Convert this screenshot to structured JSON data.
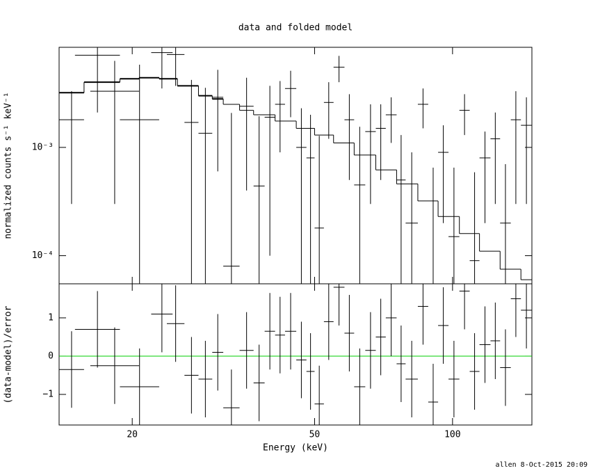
{
  "chart_data": [
    {
      "type": "errorbar",
      "title": "data and folded model",
      "ylabel": "normalized counts s⁻¹ keV⁻¹",
      "xscale": "log",
      "yscale": "log",
      "xlim": [
        13.85,
        149
      ],
      "ylim": [
        5.5e-05,
        0.0084
      ],
      "yticks": [
        {
          "value": 0.001,
          "label": "10⁻³"
        },
        {
          "value": 0.0001,
          "label": "10⁻⁴"
        }
      ],
      "data": {
        "color": "#000000",
        "x_low": [
          13.85,
          15.0,
          16.2,
          18.8,
          22.0,
          23.8,
          26.0,
          27.9,
          29.9,
          31.6,
          34.3,
          36.8,
          38.9,
          41.0,
          43.1,
          45.6,
          48.0,
          50.0,
          52.4,
          55.0,
          58.1,
          61.0,
          64.5,
          68.0,
          71.5,
          75.5,
          79.0,
          84.0,
          88.5,
          93.0,
          98.0,
          103.5,
          109.0,
          114.5,
          121.0,
          127.0,
          134.0,
          141.0
        ],
        "x_high": [
          15.7,
          18.8,
          20.7,
          22.9,
          24.5,
          26.0,
          27.9,
          29.9,
          31.6,
          34.3,
          36.8,
          38.9,
          41.0,
          43.1,
          45.6,
          48.0,
          50.0,
          52.4,
          55.0,
          58.1,
          61.0,
          64.5,
          68.0,
          71.5,
          75.5,
          79.0,
          84.0,
          88.5,
          93.0,
          98.0,
          103.5,
          109.0,
          114.5,
          121.0,
          127.0,
          134.0,
          141.0,
          149.0
        ],
        "values": [
          0.0018,
          0.0071,
          0.0033,
          0.0018,
          0.0075,
          0.0072,
          0.0017,
          0.00135,
          0.0029,
          8e-05,
          0.0024,
          0.00044,
          0.0019,
          0.0025,
          0.0035,
          0.001,
          0.0008,
          0.00018,
          0.0026,
          0.0055,
          0.0018,
          0.00045,
          0.0014,
          0.0015,
          0.002,
          0.0005,
          0.0002,
          0.0025,
          5e-05,
          0.0009,
          0.00015,
          0.0022,
          9e-05,
          0.0008,
          0.0012,
          0.0002,
          0.0018,
          0.0016
        ],
        "errors": [
          0.0015,
          0.005,
          0.003,
          0.004,
          0.004,
          0.0035,
          0.0025,
          0.0022,
          0.0023,
          0.002,
          0.002,
          0.0015,
          0.0018,
          0.0016,
          0.0016,
          0.0013,
          0.0012,
          0.0011,
          0.0014,
          0.0015,
          0.0013,
          0.0011,
          0.0011,
          0.001,
          0.0009,
          0.0008,
          0.0007,
          0.001,
          0.0006,
          0.0007,
          0.0005,
          0.0009,
          0.0005,
          0.0006,
          0.0009,
          0.0005,
          0.0015,
          0.0013
        ]
      },
      "model": {
        "color": "#000000",
        "bins": [
          13.85,
          15.7,
          18.8,
          20.7,
          22.9,
          25.1,
          27.9,
          29.9,
          31.6,
          34.3,
          36.8,
          41,
          45.6,
          50,
          55,
          61,
          68,
          75.5,
          84,
          93,
          103.5,
          114.5,
          127,
          141,
          149
        ],
        "values": [
          0.0032,
          0.004,
          0.0043,
          0.0044,
          0.0043,
          0.0037,
          0.003,
          0.0028,
          0.0025,
          0.0022,
          0.002,
          0.00175,
          0.0015,
          0.0013,
          0.0011,
          0.00085,
          0.00062,
          0.00046,
          0.00032,
          0.00023,
          0.00016,
          0.00011,
          7.5e-05,
          6e-05
        ]
      }
    },
    {
      "type": "errorbar",
      "ylabel": "(data-model)/error",
      "xlabel": "Energy (keV)",
      "xscale": "log",
      "xlim": [
        13.85,
        149
      ],
      "xticks": [
        20,
        50,
        100
      ],
      "ylim": [
        -1.8,
        1.89
      ],
      "yticks": [
        {
          "value": -1,
          "label": "−1"
        },
        0,
        1
      ],
      "zero_line": {
        "value": 0,
        "color": "#00cc00"
      },
      "data": {
        "color": "#000000",
        "x_low": [
          13.85,
          15.0,
          16.2,
          18.8,
          22.0,
          23.8,
          26.0,
          27.9,
          29.9,
          31.6,
          34.3,
          36.8,
          38.9,
          41.0,
          43.1,
          45.6,
          48.0,
          50.0,
          52.4,
          55.0,
          58.1,
          61.0,
          64.5,
          68.0,
          71.5,
          75.5,
          79.0,
          84.0,
          88.5,
          93.0,
          98.0,
          103.5,
          109.0,
          114.5,
          121.0,
          127.0,
          134.0,
          141.0
        ],
        "x_high": [
          15.7,
          18.8,
          20.7,
          22.9,
          24.5,
          26.0,
          27.9,
          29.9,
          31.6,
          34.3,
          36.8,
          38.9,
          41.0,
          43.1,
          45.6,
          48.0,
          50.0,
          52.4,
          55.0,
          58.1,
          61.0,
          64.5,
          68.0,
          71.5,
          75.5,
          79.0,
          84.0,
          88.5,
          93.0,
          98.0,
          103.5,
          109.0,
          114.5,
          121.0,
          127.0,
          134.0,
          141.0,
          149.0
        ],
        "values": [
          -0.35,
          0.7,
          -0.25,
          -0.8,
          1.1,
          0.85,
          -0.5,
          -0.6,
          0.1,
          -1.35,
          0.15,
          -0.7,
          0.65,
          0.55,
          0.65,
          -0.1,
          -0.4,
          -1.25,
          0.9,
          1.8,
          0.6,
          -0.8,
          0.15,
          0.5,
          1.0,
          -0.2,
          -0.6,
          1.3,
          -1.2,
          0.8,
          -0.6,
          1.7,
          -0.4,
          0.3,
          0.4,
          -0.3,
          1.5,
          1.2
        ],
        "errors": [
          1,
          1,
          1,
          1,
          1,
          1,
          1,
          1,
          1,
          1,
          1,
          1,
          1,
          1,
          1,
          1,
          1,
          1,
          1,
          1,
          1,
          1,
          1,
          1,
          1,
          1,
          1,
          1,
          1,
          1,
          1,
          1,
          1,
          1,
          1,
          1,
          1,
          1
        ]
      }
    }
  ],
  "footer": "allen  8-Oct-2015 20:09"
}
